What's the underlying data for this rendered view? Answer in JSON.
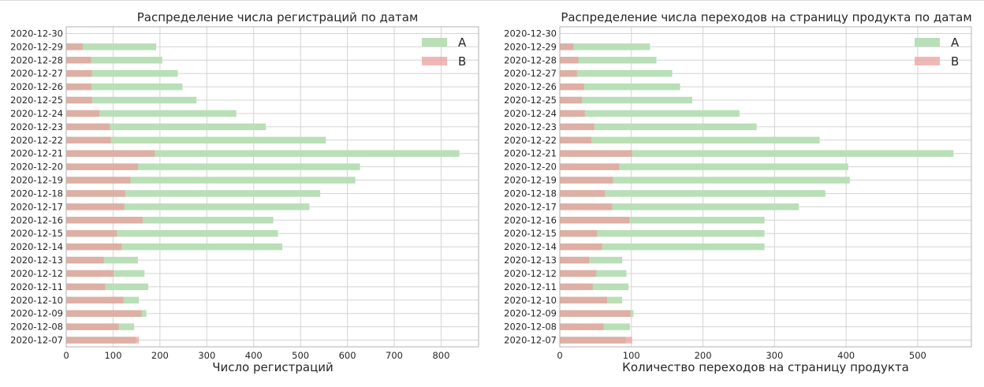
{
  "colors": {
    "a": "#b9dfb6",
    "b": "#ec9c9c",
    "overlap": "#cfa089",
    "grid": "#d4d4d4",
    "axis": "#b0b0b0",
    "text": "#262626"
  },
  "chart_data": [
    {
      "type": "bar",
      "orientation": "horizontal",
      "title": "Распределение числа регистраций по датам",
      "xlabel": "Число регистраций",
      "ylabel": "",
      "xlim": [
        0,
        880
      ],
      "xticks": [
        0,
        100,
        200,
        300,
        400,
        500,
        600,
        700,
        800
      ],
      "grid": true,
      "legend": "top-right",
      "categories": [
        "2020-12-30",
        "2020-12-29",
        "2020-12-28",
        "2020-12-27",
        "2020-12-26",
        "2020-12-25",
        "2020-12-24",
        "2020-12-23",
        "2020-12-22",
        "2020-12-21",
        "2020-12-20",
        "2020-12-19",
        "2020-12-18",
        "2020-12-17",
        "2020-12-16",
        "2020-12-15",
        "2020-12-14",
        "2020-12-13",
        "2020-12-12",
        "2020-12-11",
        "2020-12-10",
        "2020-12-09",
        "2020-12-08",
        "2020-12-07"
      ],
      "series": [
        {
          "name": "A",
          "values": [
            0,
            192,
            205,
            238,
            248,
            278,
            363,
            426,
            554,
            839,
            627,
            617,
            542,
            519,
            442,
            452,
            461,
            153,
            167,
            175,
            155,
            171,
            145,
            148
          ]
        },
        {
          "name": "B",
          "values": [
            0,
            35,
            53,
            55,
            54,
            55,
            71,
            93,
            95,
            189,
            153,
            137,
            126,
            124,
            163,
            108,
            118,
            80,
            101,
            83,
            122,
            161,
            112,
            155
          ]
        }
      ]
    },
    {
      "type": "bar",
      "orientation": "horizontal",
      "title": "Распределение числа переходов на страницу продукта по датам",
      "xlabel": "Количество переходов на страницу продукта",
      "ylabel": "",
      "xlim": [
        0,
        575
      ],
      "xticks": [
        0,
        100,
        200,
        300,
        400,
        500
      ],
      "grid": true,
      "legend": "top-right",
      "categories": [
        "2020-12-30",
        "2020-12-29",
        "2020-12-28",
        "2020-12-27",
        "2020-12-26",
        "2020-12-25",
        "2020-12-24",
        "2020-12-23",
        "2020-12-22",
        "2020-12-21",
        "2020-12-20",
        "2020-12-19",
        "2020-12-18",
        "2020-12-17",
        "2020-12-16",
        "2020-12-15",
        "2020-12-14",
        "2020-12-13",
        "2020-12-12",
        "2020-12-11",
        "2020-12-10",
        "2020-12-09",
        "2020-12-08",
        "2020-12-07"
      ],
      "series": [
        {
          "name": "A",
          "values": [
            0,
            126,
            135,
            157,
            168,
            185,
            251,
            275,
            363,
            550,
            403,
            405,
            371,
            334,
            286,
            286,
            286,
            87,
            93,
            96,
            87,
            103,
            98,
            92
          ]
        },
        {
          "name": "B",
          "values": [
            0,
            19,
            26,
            24,
            34,
            31,
            35,
            48,
            44,
            101,
            83,
            74,
            63,
            73,
            97,
            52,
            59,
            41,
            51,
            46,
            66,
            99,
            61,
            101
          ]
        }
      ]
    }
  ]
}
